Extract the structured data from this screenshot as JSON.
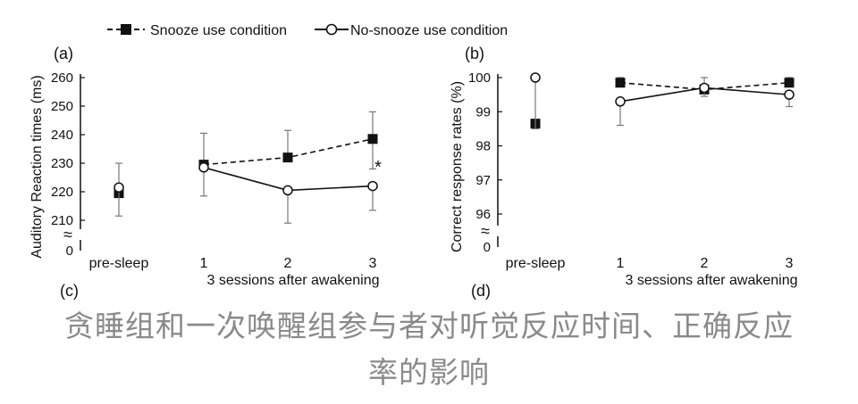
{
  "legend": {
    "snooze_label": "Snooze use condition",
    "nosnooze_label": "No-snooze use condition"
  },
  "colors": {
    "ink": "#111111",
    "caption": "#8a8a8a",
    "errorbar": "#777777"
  },
  "chart_data": [
    {
      "type": "line",
      "panel_label": "(a)",
      "cut_label": "(c)",
      "ylabel": "Auditory Reaction times (ms)",
      "xlabel": "3 sessions after awakening",
      "categories": [
        "pre-sleep",
        "1",
        "2",
        "3"
      ],
      "ylim": [
        205,
        260
      ],
      "yticks": [
        210,
        220,
        230,
        240,
        250,
        260
      ],
      "axis_break": true,
      "axis_zero_label": "0",
      "break_symbol": "≈",
      "grid": false,
      "legend_position": "top",
      "series": [
        {
          "name": "Snooze use condition",
          "marker": "filled-square",
          "line": "dashed",
          "values": [
            219.5,
            229.5,
            232,
            238.5
          ],
          "error_high": [
            null,
            240.5,
            241.5,
            248
          ],
          "error_low": [
            null,
            null,
            null,
            228
          ]
        },
        {
          "name": "No-snooze use condition",
          "marker": "open-circle",
          "line": "solid",
          "values": [
            221.5,
            228.5,
            220.5,
            222
          ],
          "error_high": [
            230,
            null,
            null,
            null
          ],
          "error_low": [
            211.5,
            218.5,
            209,
            213.5
          ]
        }
      ],
      "annotations": [
        {
          "category": "3",
          "text": "*"
        }
      ]
    },
    {
      "type": "line",
      "panel_label": "(b)",
      "cut_label": "(d)",
      "ylabel": "Correct response rates (%)",
      "xlabel": "3 sessions after awakening",
      "categories": [
        "pre-sleep",
        "1",
        "2",
        "3"
      ],
      "ylim": [
        95.6,
        100
      ],
      "yticks": [
        96,
        97,
        98,
        99,
        100
      ],
      "axis_break": true,
      "axis_zero_label": "0",
      "break_symbol": "≈",
      "grid": false,
      "series": [
        {
          "name": "Snooze use condition",
          "marker": "filled-square",
          "line": "dashed",
          "values": [
            98.65,
            99.85,
            99.65,
            99.85
          ],
          "error_high": [
            null,
            100,
            100,
            100
          ],
          "error_low": [
            null,
            null,
            null,
            null
          ]
        },
        {
          "name": "No-snooze use condition",
          "marker": "open-circle",
          "line": "solid",
          "values": [
            100,
            99.3,
            99.7,
            99.5
          ],
          "error_high": [
            null,
            null,
            null,
            null
          ],
          "error_low": [
            98.5,
            98.6,
            99.45,
            99.15
          ]
        }
      ],
      "annotations": []
    }
  ],
  "caption": {
    "line1": "贪睡组和一次唤醒组参与者对听觉反应时间、正确反应",
    "line2": "率的影响"
  }
}
